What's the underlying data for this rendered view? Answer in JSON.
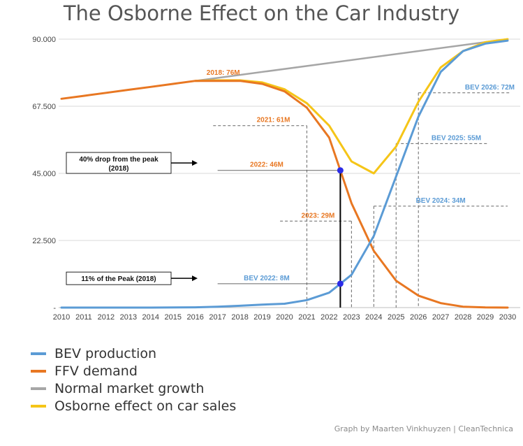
{
  "colors": {
    "bev": "#5b9bd5",
    "ffv": "#e87722",
    "normal": "#a6a6a6",
    "osborne": "#f5c518",
    "marker": "#2b2be8",
    "grid": "#d9d9d9",
    "axis_text": "#444444",
    "ffv_label": "#e87722",
    "bev_label": "#5b9bd5"
  },
  "credit": "Graph by Maarten Vinkhuyzen | CleanTechnica",
  "chart_data": {
    "type": "line",
    "title": "The Osborne Effect on the Car Industry",
    "x": [
      2010,
      2011,
      2012,
      2013,
      2014,
      2015,
      2016,
      2017,
      2018,
      2019,
      2020,
      2021,
      2022,
      2023,
      2024,
      2025,
      2026,
      2027,
      2028,
      2029,
      2030
    ],
    "ylim": [
      0,
      90000
    ],
    "yticks": [
      {
        "value": 0,
        "label": "-"
      },
      {
        "value": 22500,
        "label": "22.500"
      },
      {
        "value": 45000,
        "label": "45.000"
      },
      {
        "value": 67500,
        "label": "67.500"
      },
      {
        "value": 90000,
        "label": "90.000"
      }
    ],
    "series": [
      {
        "name": "Normal market growth",
        "key": "normal",
        "points": [
          [
            2016,
            76000
          ],
          [
            2030,
            90000
          ]
        ]
      },
      {
        "name": "FFV demand",
        "key": "ffv",
        "points": [
          [
            2010,
            70000
          ],
          [
            2011,
            71000
          ],
          [
            2012,
            72000
          ],
          [
            2013,
            73000
          ],
          [
            2014,
            74000
          ],
          [
            2015,
            75000
          ],
          [
            2016,
            76000
          ],
          [
            2017,
            76000
          ],
          [
            2018,
            76000
          ],
          [
            2019,
            75000
          ],
          [
            2020,
            72500
          ],
          [
            2021,
            67000
          ],
          [
            2022,
            57000
          ],
          [
            2022.5,
            46000
          ],
          [
            2023,
            35000
          ],
          [
            2024,
            19000
          ],
          [
            2025,
            9000
          ],
          [
            2026,
            4000
          ],
          [
            2027,
            1500
          ],
          [
            2028,
            300
          ],
          [
            2029,
            50
          ],
          [
            2030,
            0
          ]
        ]
      },
      {
        "name": "Osborne effect on car sales",
        "key": "osborne",
        "points": [
          [
            2016,
            76000
          ],
          [
            2017,
            76200
          ],
          [
            2018,
            76200
          ],
          [
            2019,
            75500
          ],
          [
            2020,
            73200
          ],
          [
            2021,
            68500
          ],
          [
            2022,
            61000
          ],
          [
            2023,
            49000
          ],
          [
            2024,
            45000
          ],
          [
            2025,
            54000
          ],
          [
            2026,
            69000
          ],
          [
            2027,
            80500
          ],
          [
            2028,
            86000
          ],
          [
            2029,
            89000
          ],
          [
            2030,
            90000
          ]
        ]
      },
      {
        "name": "BEV production",
        "key": "bev",
        "points": [
          [
            2010,
            0
          ],
          [
            2012,
            0
          ],
          [
            2014,
            0
          ],
          [
            2016,
            100
          ],
          [
            2017,
            300
          ],
          [
            2018,
            600
          ],
          [
            2019,
            1000
          ],
          [
            2020,
            1300
          ],
          [
            2021,
            2500
          ],
          [
            2022,
            5000
          ],
          [
            2022.5,
            8000
          ],
          [
            2023,
            11000
          ],
          [
            2024,
            24000
          ],
          [
            2025,
            44000
          ],
          [
            2026,
            64000
          ],
          [
            2027,
            79000
          ],
          [
            2028,
            86000
          ],
          [
            2029,
            88500
          ],
          [
            2030,
            89500
          ]
        ]
      }
    ],
    "legend": [
      {
        "key": "bev",
        "label": "BEV production"
      },
      {
        "key": "ffv",
        "label": "FFV demand"
      },
      {
        "key": "normal",
        "label": "Normal market growth"
      },
      {
        "key": "osborne",
        "label": "Osborne effect on car sales"
      }
    ],
    "annotations": [
      {
        "kind": "label",
        "text": "2018: 76M",
        "x": 2018,
        "y": 78000,
        "color": "ffv",
        "anchor": "end"
      },
      {
        "kind": "guide",
        "text": "2021: 61M",
        "value": 61000,
        "from": 2016.8,
        "to": 2021,
        "label_x": 2019.5,
        "color": "ffv"
      },
      {
        "kind": "guide",
        "text": "2022: 46M",
        "value": 46000,
        "from": 2017,
        "to": 2022.5,
        "label_x": 2019.2,
        "color": "ffv",
        "solid": true
      },
      {
        "kind": "guide",
        "text": "2023: 29M",
        "value": 29000,
        "from": 2019.8,
        "to": 2023,
        "label_x": 2021.5,
        "color": "ffv"
      },
      {
        "kind": "guide",
        "text": "BEV 2022: 8M",
        "value": 8000,
        "from": 2017,
        "to": 2022.5,
        "label_x": 2019.2,
        "color": "bev",
        "solid": true
      },
      {
        "kind": "guide",
        "text": "BEV 2024: 34M",
        "value": 34000,
        "from": 2024,
        "to": 2030,
        "label_x": 2027,
        "color": "bev"
      },
      {
        "kind": "guide",
        "text": "BEV 2025: 55M",
        "value": 55000,
        "from": 2025,
        "to": 2029.1,
        "label_x": 2027.7,
        "color": "bev"
      },
      {
        "kind": "guide",
        "text": "BEV 2026: 72M",
        "value": 72000,
        "from": 2026,
        "to": 2030.1,
        "label_x": 2029.2,
        "color": "bev"
      }
    ],
    "callouts": [
      {
        "text_lines": [
          "40% drop from the peak",
          "(2018)"
        ],
        "y": 48500
      },
      {
        "text_lines": [
          "11% of the Peak (2018)"
        ],
        "y": 9800
      }
    ],
    "markers": [
      {
        "x": 2022.5,
        "y": 46000
      },
      {
        "x": 2022.5,
        "y": 8000
      }
    ]
  }
}
